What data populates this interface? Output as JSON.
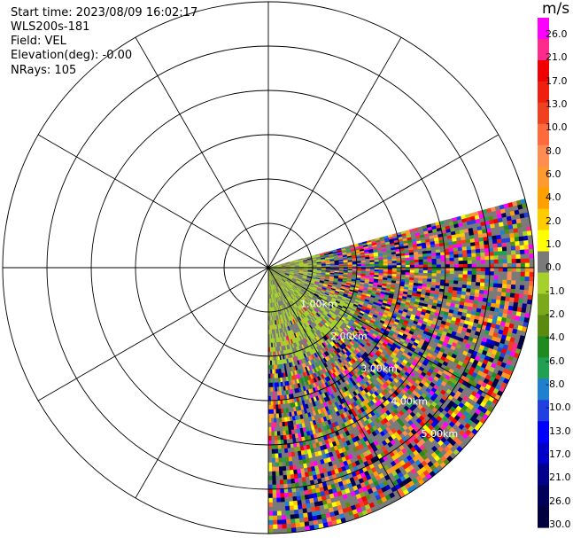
{
  "header": {
    "start_time": "Start time: 2023/08/09 16:02:17",
    "instrument": "WLS200s-181",
    "field": "Field: VEL",
    "elevation": "Elevation(deg): -0.00",
    "nrays": "NRays: 105"
  },
  "chart_data": {
    "type": "heatmap",
    "projection": "polar-ppi",
    "field": "VEL",
    "units": "m/s",
    "grid": true,
    "azimuth_spokes_deg": [
      0,
      30,
      60,
      90,
      120,
      150,
      180,
      210,
      240,
      270,
      300,
      330
    ],
    "range_rings_km": [
      1,
      2,
      3,
      4,
      5,
      6
    ],
    "range_labels": [
      "1.00km",
      "2.00km",
      "3.00km",
      "4.00km",
      "5.00km"
    ],
    "sector_azimuth_deg": [
      75,
      180
    ],
    "nrays": 105,
    "colorbar": {
      "label": "m/s",
      "ticks": [
        "26.0",
        "21.0",
        "17.0",
        "13.0",
        "10.0",
        "8.0",
        "6.0",
        "4.0",
        "2.0",
        "1.0",
        "0.0",
        "-1.0",
        "-2.0",
        "-4.0",
        "-6.0",
        "-8.0",
        "-10.0",
        "-13.0",
        "-17.0",
        "-21.0",
        "-26.0",
        "-30.0"
      ],
      "colors": [
        "#ff00ff",
        "#ff2a8c",
        "#f00000",
        "#f02010",
        "#f04020",
        "#ff6a3c",
        "#ff8c50",
        "#ff9a30",
        "#ffa000",
        "#ffcc00",
        "#ffff00",
        "#7a7a7a",
        "#a6d12c",
        "#7aaa1c",
        "#5a8a10",
        "#208a20",
        "#20a050",
        "#2080d0",
        "#2040e0",
        "#0000ff",
        "#0000c8",
        "#00008c",
        "#00005a",
        "#000040"
      ]
    }
  }
}
